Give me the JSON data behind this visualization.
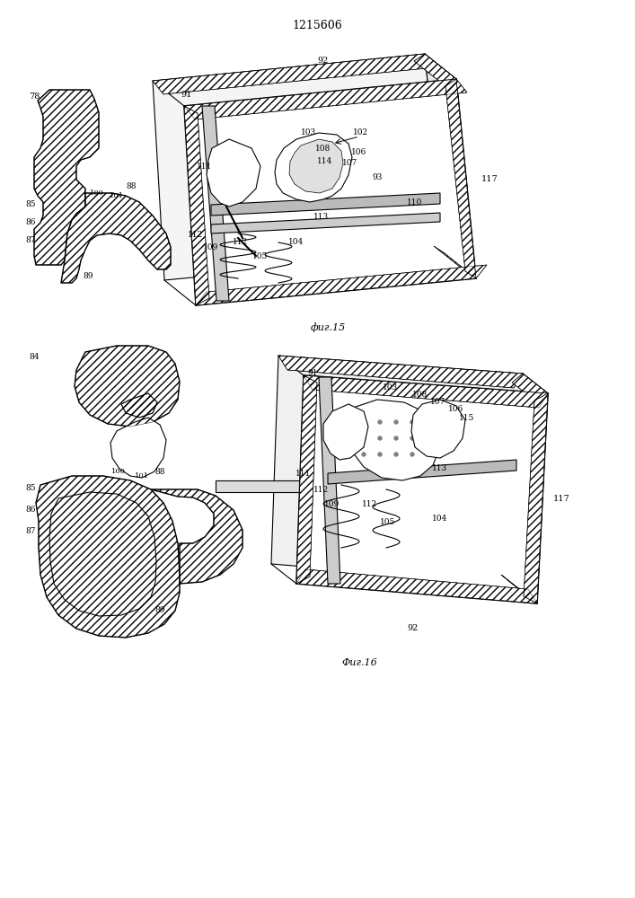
{
  "title": "1215606",
  "fig15_label": "фиг.15",
  "fig16_label": "Фиг.16",
  "bg_color": "#ffffff",
  "fig_width": 7.07,
  "fig_height": 10.0
}
